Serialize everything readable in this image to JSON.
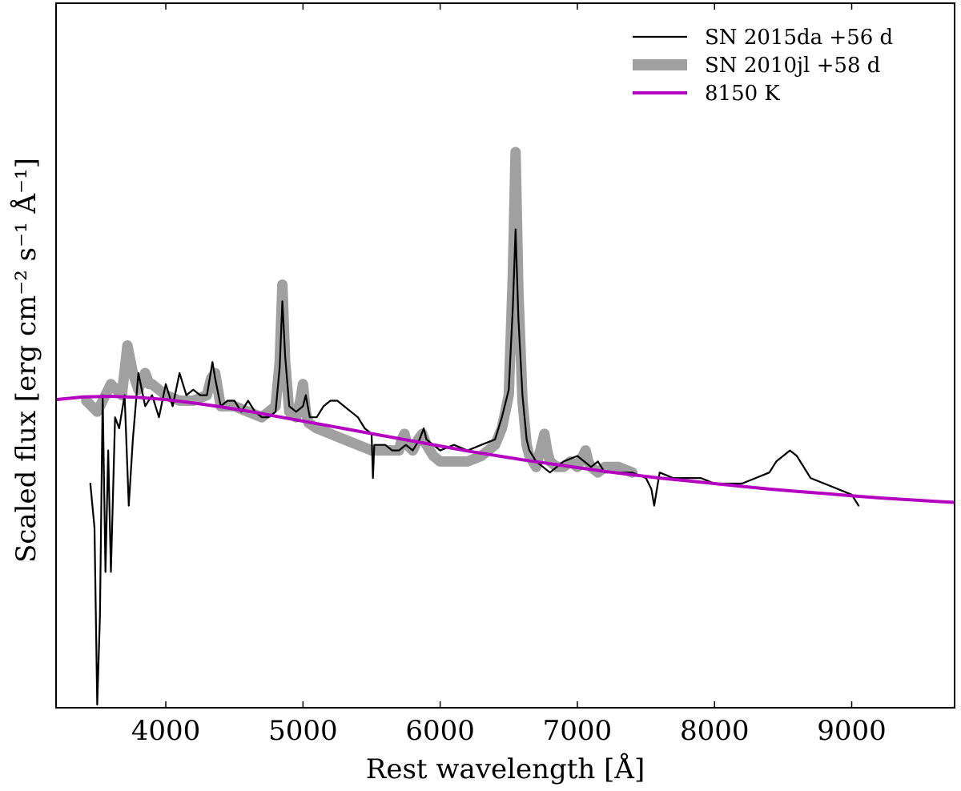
{
  "chart_data": {
    "type": "line",
    "xlabel": "Rest wavelength [Å]",
    "ylabel": "Scaled flux [erg cm⁻² s⁻¹ Å⁻¹]",
    "xlim": [
      3200,
      9750
    ],
    "ylim": [
      0,
      1.0
    ],
    "xticks": [
      4000,
      5000,
      6000,
      7000,
      8000,
      9000
    ],
    "xtick_labels": [
      "4000",
      "5000",
      "6000",
      "7000",
      "8000",
      "9000"
    ],
    "yticks_labeled": false,
    "grid": false,
    "legend_position": "top-right",
    "series": [
      {
        "name": "SN 2015da",
        "label_suffix": "+56 d",
        "color": "#000000",
        "style": "thin",
        "x": [
          3450,
          3480,
          3500,
          3520,
          3540,
          3560,
          3580,
          3600,
          3630,
          3660,
          3700,
          3730,
          3760,
          3800,
          3850,
          3900,
          3950,
          4000,
          4050,
          4100,
          4150,
          4200,
          4250,
          4300,
          4340,
          4360,
          4400,
          4450,
          4500,
          4550,
          4600,
          4650,
          4700,
          4750,
          4800,
          4830,
          4850,
          4870,
          4900,
          4950,
          5000,
          5020,
          5050,
          5100,
          5150,
          5200,
          5250,
          5300,
          5350,
          5400,
          5450,
          5500,
          5510,
          5520,
          5540,
          5600,
          5650,
          5700,
          5750,
          5800,
          5850,
          5880,
          5900,
          5950,
          6000,
          6100,
          6200,
          6300,
          6400,
          6450,
          6500,
          6530,
          6550,
          6570,
          6600,
          6630,
          6650,
          6700,
          6750,
          6800,
          6850,
          6900,
          7000,
          7050,
          7100,
          7150,
          7200,
          7300,
          7400,
          7500,
          7540,
          7560,
          7600,
          7700,
          7800,
          7900,
          8000,
          8100,
          8200,
          8300,
          8400,
          8450,
          8500,
          8550,
          8600,
          8650,
          8700,
          8800,
          8900,
          9000,
          9050
        ],
        "y": [
          0.4,
          0.32,
          0.0,
          0.16,
          0.56,
          0.24,
          0.46,
          0.24,
          0.52,
          0.5,
          0.56,
          0.36,
          0.48,
          0.6,
          0.54,
          0.56,
          0.52,
          0.58,
          0.54,
          0.6,
          0.56,
          0.57,
          0.56,
          0.56,
          0.62,
          0.59,
          0.54,
          0.55,
          0.55,
          0.53,
          0.55,
          0.53,
          0.52,
          0.52,
          0.53,
          0.61,
          0.73,
          0.63,
          0.54,
          0.53,
          0.54,
          0.56,
          0.52,
          0.52,
          0.54,
          0.55,
          0.55,
          0.54,
          0.53,
          0.52,
          0.5,
          0.49,
          0.41,
          0.47,
          0.47,
          0.47,
          0.46,
          0.46,
          0.47,
          0.46,
          0.48,
          0.5,
          0.48,
          0.47,
          0.46,
          0.47,
          0.46,
          0.47,
          0.48,
          0.52,
          0.57,
          0.72,
          0.86,
          0.7,
          0.56,
          0.48,
          0.46,
          0.44,
          0.43,
          0.42,
          0.43,
          0.44,
          0.45,
          0.44,
          0.43,
          0.44,
          0.42,
          0.42,
          0.42,
          0.41,
          0.39,
          0.36,
          0.42,
          0.41,
          0.41,
          0.41,
          0.4,
          0.4,
          0.4,
          0.41,
          0.42,
          0.44,
          0.45,
          0.46,
          0.45,
          0.43,
          0.41,
          0.4,
          0.39,
          0.38,
          0.36
        ]
      },
      {
        "name": "SN 2010jl",
        "label_suffix": "+58 d",
        "color": "#a0a0a0",
        "style": "thick",
        "x": [
          3420,
          3500,
          3600,
          3680,
          3720,
          3760,
          3800,
          3850,
          3880,
          3900,
          4000,
          4100,
          4200,
          4300,
          4330,
          4360,
          4400,
          4500,
          4600,
          4700,
          4800,
          4830,
          4850,
          4870,
          4900,
          4950,
          4980,
          5000,
          5020,
          5040,
          5100,
          5200,
          5300,
          5400,
          5500,
          5600,
          5700,
          5720,
          5740,
          5760,
          5800,
          5840,
          5870,
          5900,
          5950,
          6000,
          6100,
          6200,
          6300,
          6400,
          6450,
          6500,
          6530,
          6550,
          6570,
          6600,
          6630,
          6650,
          6700,
          6740,
          6760,
          6780,
          6800,
          6850,
          6900,
          6950,
          7000,
          7040,
          7060,
          7080,
          7100,
          7150,
          7200,
          7300,
          7400
        ],
        "y": [
          0.55,
          0.53,
          0.58,
          0.56,
          0.65,
          0.6,
          0.57,
          0.6,
          0.58,
          0.58,
          0.56,
          0.55,
          0.55,
          0.56,
          0.59,
          0.6,
          0.54,
          0.54,
          0.53,
          0.52,
          0.54,
          0.62,
          0.76,
          0.62,
          0.53,
          0.52,
          0.55,
          0.58,
          0.53,
          0.51,
          0.5,
          0.49,
          0.48,
          0.47,
          0.46,
          0.46,
          0.46,
          0.48,
          0.49,
          0.47,
          0.46,
          0.48,
          0.49,
          0.47,
          0.45,
          0.44,
          0.44,
          0.44,
          0.45,
          0.47,
          0.5,
          0.56,
          0.78,
          1.0,
          0.75,
          0.55,
          0.47,
          0.45,
          0.43,
          0.47,
          0.49,
          0.46,
          0.44,
          0.43,
          0.43,
          0.44,
          0.43,
          0.45,
          0.46,
          0.44,
          0.43,
          0.42,
          0.43,
          0.43,
          0.42
        ]
      },
      {
        "name": "8150 K",
        "label_suffix": "",
        "color": "#b400c0",
        "style": "medium",
        "x": [
          3200,
          3400,
          3600,
          3800,
          4000,
          4200,
          4400,
          4600,
          4800,
          5000,
          5200,
          5400,
          5600,
          5800,
          6000,
          6200,
          6400,
          6600,
          6800,
          7000,
          7200,
          7400,
          7600,
          7800,
          8000,
          8200,
          8400,
          8600,
          8800,
          9000,
          9200,
          9400,
          9600,
          9750
        ],
        "y": [
          0.552,
          0.557,
          0.558,
          0.556,
          0.552,
          0.546,
          0.539,
          0.531,
          0.522,
          0.513,
          0.504,
          0.495,
          0.486,
          0.477,
          0.468,
          0.459,
          0.451,
          0.443,
          0.436,
          0.429,
          0.422,
          0.416,
          0.41,
          0.405,
          0.4,
          0.395,
          0.39,
          0.386,
          0.382,
          0.378,
          0.374,
          0.371,
          0.368,
          0.366
        ]
      }
    ]
  }
}
